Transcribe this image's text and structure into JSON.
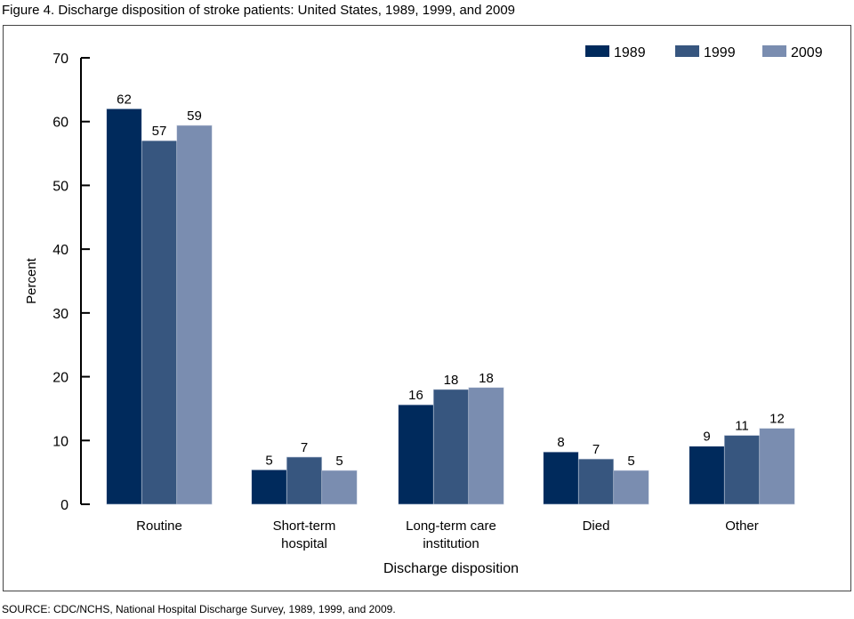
{
  "chart_data": {
    "type": "bar",
    "title": "Figure 4. Discharge disposition of stroke patients: United States, 1989, 1999, and 2009",
    "xlabel": "Discharge disposition",
    "ylabel": "Percent",
    "ylim": [
      0,
      70
    ],
    "yticks": [
      0,
      10,
      20,
      30,
      40,
      50,
      60,
      70
    ],
    "grid": false,
    "legend_position": "top-right",
    "categories": [
      [
        "Routine"
      ],
      [
        "Short-term",
        "hospital"
      ],
      [
        "Long-term care",
        "institution"
      ],
      [
        "Died"
      ],
      [
        "Other"
      ]
    ],
    "series": [
      {
        "name": "1989",
        "color": "#002a5c",
        "values": [
          62,
          5.4,
          15.6,
          8.2,
          9.1
        ],
        "labels": [
          "62",
          "5",
          "16",
          "8",
          "9"
        ]
      },
      {
        "name": "1999",
        "color": "#37567f",
        "values": [
          57,
          7.4,
          18.0,
          7.1,
          10.8
        ],
        "labels": [
          "57",
          "7",
          "18",
          "7",
          "11"
        ]
      },
      {
        "name": "2009",
        "color": "#7a8db0",
        "values": [
          59.4,
          5.3,
          18.3,
          5.3,
          11.9
        ],
        "labels": [
          "59",
          "5",
          "18",
          "5",
          "12"
        ]
      }
    ]
  },
  "source": "SOURCE: CDC/NCHS, National Hospital Discharge Survey, 1989, 1999, and 2009."
}
